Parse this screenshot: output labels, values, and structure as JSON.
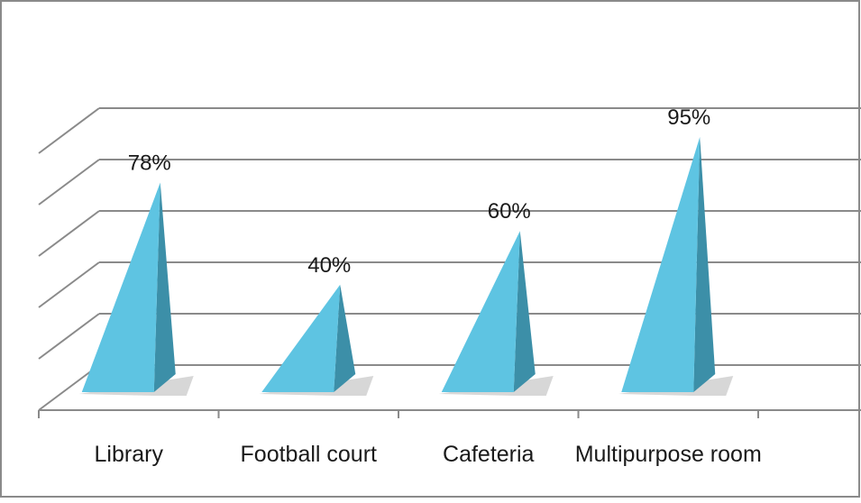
{
  "chart_data": {
    "type": "bar",
    "style": "3d-pyramid",
    "categories": [
      "Library",
      "Football court",
      "Cafeteria",
      "Multipurpose room"
    ],
    "values": [
      78,
      40,
      60,
      95
    ],
    "data_labels": [
      "78%",
      "40%",
      "60%",
      "95%"
    ],
    "unit": "%",
    "ylim": [
      0,
      100
    ],
    "grid": true,
    "legend": "none",
    "title": "",
    "xlabel": "",
    "ylabel": "",
    "colors": {
      "pyramid_front": "#5ec4e2",
      "pyramid_side": "#3c8fa8",
      "pyramid_shadow": "#bdbdbd",
      "grid": "#8a8a8a",
      "frame": "#8a8a8a"
    }
  }
}
